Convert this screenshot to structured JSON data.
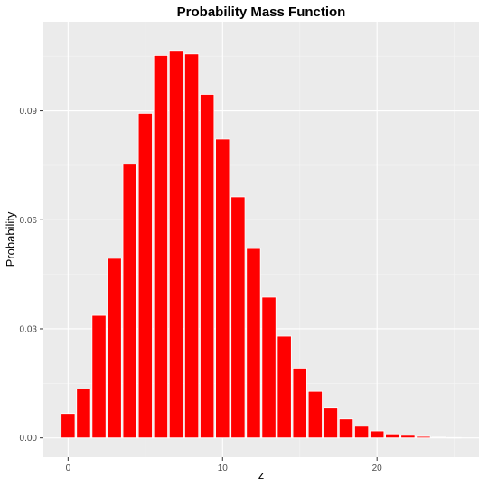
{
  "chart_data": {
    "type": "bar",
    "title": "Probability Mass Function",
    "xlabel": "z",
    "ylabel": "Probability",
    "x": [
      0,
      1,
      2,
      3,
      4,
      5,
      6,
      7,
      8,
      9,
      10,
      11,
      12,
      13,
      14,
      15,
      16,
      17,
      18,
      19,
      20,
      21,
      22,
      23,
      24,
      25
    ],
    "values": [
      0.0067,
      0.0135,
      0.0337,
      0.0494,
      0.0753,
      0.0893,
      0.1052,
      0.1066,
      0.1056,
      0.0945,
      0.0822,
      0.0663,
      0.0521,
      0.0387,
      0.028,
      0.0192,
      0.0128,
      0.0082,
      0.0052,
      0.0032,
      0.0019,
      0.0011,
      0.0007,
      0.0004,
      0.0002,
      0.0001
    ],
    "xlim": [
      -1.6,
      26.6
    ],
    "ylim": [
      -0.0053,
      0.1145
    ],
    "x_ticks": [
      0,
      10,
      20
    ],
    "x_minor_ticks": [
      5,
      15,
      25
    ],
    "y_ticks": [
      0.0,
      0.03,
      0.06,
      0.09
    ],
    "y_tick_labels": [
      "0.00",
      "0.03",
      "0.06",
      "0.09"
    ],
    "y_minor_ticks": [
      0.015,
      0.045,
      0.075,
      0.105
    ],
    "grid": true,
    "legend": "none",
    "colors": {
      "bar_fill": "#ff0000",
      "bar_outline": "#ffffff",
      "panel_background": "#ebebeb",
      "grid_major": "#ffffff",
      "grid_minor": "#f5f5f5"
    }
  }
}
